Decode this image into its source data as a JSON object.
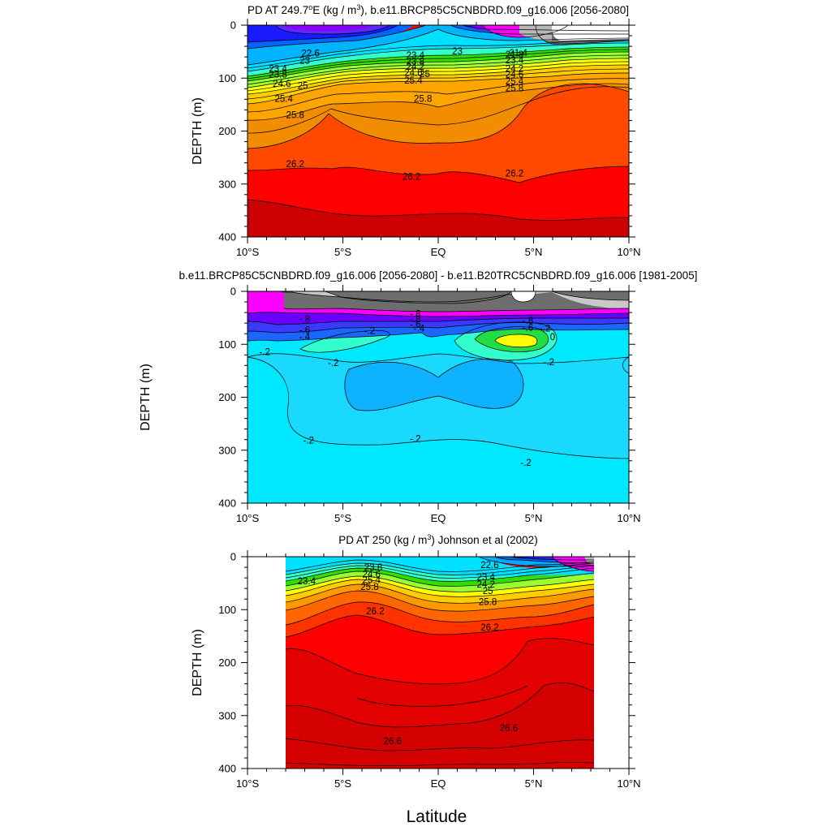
{
  "figure": {
    "xlabel": "Latitude"
  },
  "colors": {
    "shading": [
      "#b8b8b8",
      "#6e6e6e",
      "#ff00ff",
      "#8a00ff",
      "#5a2aff",
      "#1a1aff",
      "#0066ff",
      "#00aaff",
      "#00e0ff",
      "#33ffcc",
      "#66ff66",
      "#33dd00",
      "#ffff00",
      "#ffcc00",
      "#ff9900",
      "#ff6600",
      "#ff3300",
      "#ff0000",
      "#d40000"
    ],
    "diff_palette": [
      "#00e8ff",
      "#1ad9ff",
      "#0fb2ff",
      "#33ffcc",
      "#22dd44",
      "#ffff00",
      "#1a66ff",
      "#3a3aff",
      "#6a00ff",
      "#ff00ff",
      "#6e6e6e",
      "#c8c8c8"
    ],
    "missing": "#ffffff"
  },
  "chart_data": [
    {
      "type": "heatmap",
      "title": "PD AT 249.7°E (kg / m³), b.e11.BRCP85C5CNBDRD.f09_g16.006 [2056-2080]",
      "title_parts": {
        "prefix": "PD AT 249.7",
        "sup1": "o",
        "mid": "E (kg / m",
        "sup2": "3",
        "suffix": "), b.e11.BRCP85C5CNBDRD.f09_g16.006 [2056-2080]"
      },
      "xlabel": "",
      "ylabel": "DEPTH (m)",
      "x_ticks": [
        "10°S",
        "5°S",
        "EQ",
        "5°N",
        "10°N"
      ],
      "x_tick_values": [
        -10,
        -5,
        0,
        5,
        10
      ],
      "xlim": [
        -10,
        10
      ],
      "y_ticks": [
        "0",
        "100",
        "200",
        "300",
        "400"
      ],
      "y_tick_values": [
        0,
        100,
        200,
        300,
        400
      ],
      "ylim": [
        0,
        400
      ],
      "y_inverted": true,
      "grid": false,
      "shaded": true,
      "contour_labels": [
        {
          "lat": -6.7,
          "depth": 53,
          "text": "22.6"
        },
        {
          "lat": -7.0,
          "depth": 67,
          "text": "23"
        },
        {
          "lat": -8.4,
          "depth": 82,
          "text": "23.4"
        },
        {
          "lat": -8.4,
          "depth": 93,
          "text": "23.8"
        },
        {
          "lat": -8.2,
          "depth": 110,
          "text": "24.6"
        },
        {
          "lat": -7.1,
          "depth": 114,
          "text": "25"
        },
        {
          "lat": -8.1,
          "depth": 139,
          "text": "25.4"
        },
        {
          "lat": -7.5,
          "depth": 169,
          "text": "25.8"
        },
        {
          "lat": -7.5,
          "depth": 262,
          "text": "26.2"
        },
        {
          "lat": -1.2,
          "depth": 57,
          "text": "23.4"
        },
        {
          "lat": -1.2,
          "depth": 68,
          "text": "23.8"
        },
        {
          "lat": -1.2,
          "depth": 78,
          "text": "24.2"
        },
        {
          "lat": -1.3,
          "depth": 90,
          "text": "24.6"
        },
        {
          "lat": 1.0,
          "depth": 49,
          "text": "23"
        },
        {
          "lat": -0.7,
          "depth": 92,
          "text": "25"
        },
        {
          "lat": -1.3,
          "depth": 104,
          "text": "25.4"
        },
        {
          "lat": -0.8,
          "depth": 139,
          "text": "25.8"
        },
        {
          "lat": -1.4,
          "depth": 286,
          "text": "26.2"
        },
        {
          "lat": 4.2,
          "depth": 52,
          "text": "21.4"
        },
        {
          "lat": 4.0,
          "depth": 55,
          "text": "21.8"
        },
        {
          "lat": 4.0,
          "depth": 66,
          "text": "23.4"
        },
        {
          "lat": 4.0,
          "depth": 82,
          "text": "24.2"
        },
        {
          "lat": 4.0,
          "depth": 93,
          "text": "24.6"
        },
        {
          "lat": 4.0,
          "depth": 106,
          "text": "25.4"
        },
        {
          "lat": 4.0,
          "depth": 119,
          "text": "25.8"
        },
        {
          "lat": 4.0,
          "depth": 280,
          "text": "26.2"
        }
      ]
    },
    {
      "type": "heatmap",
      "title": "b.e11.BRCP85C5CNBDRD.f09_g16.006 [2056-2080] - b.e11.B20TRC5CNBDRD.f09_g16.006 [1981-2005]",
      "xlabel": "",
      "ylabel": "DEPTH (m)",
      "x_ticks": [
        "10°S",
        "5°S",
        "EQ",
        "5°N",
        "10°N"
      ],
      "x_tick_values": [
        -10,
        -5,
        0,
        5,
        10
      ],
      "xlim": [
        -10,
        10
      ],
      "y_ticks": [
        "0",
        "100",
        "200",
        "300",
        "400"
      ],
      "y_tick_values": [
        0,
        100,
        200,
        300,
        400
      ],
      "ylim": [
        0,
        400
      ],
      "y_inverted": true,
      "grid": false,
      "shaded": true,
      "contour_labels": [
        {
          "lat": -7.0,
          "depth": 52,
          "text": "-.8"
        },
        {
          "lat": -7.0,
          "depth": 73,
          "text": "-.6"
        },
        {
          "lat": -7.0,
          "depth": 86,
          "text": "-.4"
        },
        {
          "lat": -3.6,
          "depth": 74,
          "text": "-.2"
        },
        {
          "lat": -9.1,
          "depth": 114,
          "text": "-.2"
        },
        {
          "lat": -5.5,
          "depth": 135,
          "text": "-.2"
        },
        {
          "lat": -1.2,
          "depth": 42,
          "text": "-.8"
        },
        {
          "lat": -1.2,
          "depth": 52,
          "text": "-.8"
        },
        {
          "lat": -1.2,
          "depth": 62,
          "text": "-.6"
        },
        {
          "lat": -1.0,
          "depth": 70,
          "text": "-.4"
        },
        {
          "lat": 4.7,
          "depth": 55,
          "text": "-.8"
        },
        {
          "lat": 4.7,
          "depth": 68,
          "text": "-.6"
        },
        {
          "lat": 5.6,
          "depth": 70,
          "text": "-.2"
        },
        {
          "lat": 6.0,
          "depth": 86,
          "text": "0"
        },
        {
          "lat": 5.8,
          "depth": 133,
          "text": "-.2"
        },
        {
          "lat": -6.8,
          "depth": 281,
          "text": "-.2"
        },
        {
          "lat": -1.2,
          "depth": 278,
          "text": "-.2"
        },
        {
          "lat": 4.6,
          "depth": 323,
          "text": "-.2"
        }
      ]
    },
    {
      "type": "heatmap",
      "title": "PD AT 250 (kg / m³) Johnson et al (2002)",
      "title_parts": {
        "prefix": "PD AT 250 (kg / m",
        "sup": "3",
        "suffix": ") Johnson et al (2002)"
      },
      "xlabel": "Latitude",
      "ylabel": "DEPTH (m)",
      "x_ticks": [
        "10°S",
        "5°S",
        "EQ",
        "5°N",
        "10°N"
      ],
      "x_tick_values": [
        -10,
        -5,
        0,
        5,
        10
      ],
      "xlim": [
        -10,
        10
      ],
      "y_ticks": [
        "0",
        "100",
        "200",
        "300",
        "400"
      ],
      "y_tick_values": [
        0,
        100,
        200,
        300,
        400
      ],
      "ylim": [
        0,
        400
      ],
      "y_inverted": true,
      "grid": false,
      "shaded": true,
      "data_lat_range": [
        -8,
        8
      ],
      "contour_labels": [
        {
          "lat": -6.9,
          "depth": 46,
          "text": "23.4"
        },
        {
          "lat": -3.4,
          "depth": 20,
          "text": "23.8"
        },
        {
          "lat": -3.5,
          "depth": 33,
          "text": "24.6"
        },
        {
          "lat": -3.5,
          "depth": 44,
          "text": "25.4"
        },
        {
          "lat": -3.6,
          "depth": 57,
          "text": "25.8"
        },
        {
          "lat": -3.3,
          "depth": 103,
          "text": "26.2"
        },
        {
          "lat": -2.4,
          "depth": 348,
          "text": "26.6"
        },
        {
          "lat": 2.7,
          "depth": 15,
          "text": "22.6"
        },
        {
          "lat": 2.5,
          "depth": 38,
          "text": "23.4"
        },
        {
          "lat": 2.5,
          "depth": 52,
          "text": "24.2"
        },
        {
          "lat": 2.6,
          "depth": 64,
          "text": "25"
        },
        {
          "lat": 2.6,
          "depth": 85,
          "text": "25.8"
        },
        {
          "lat": 2.7,
          "depth": 133,
          "text": "26.2"
        },
        {
          "lat": 3.7,
          "depth": 323,
          "text": "26.6"
        }
      ]
    }
  ]
}
